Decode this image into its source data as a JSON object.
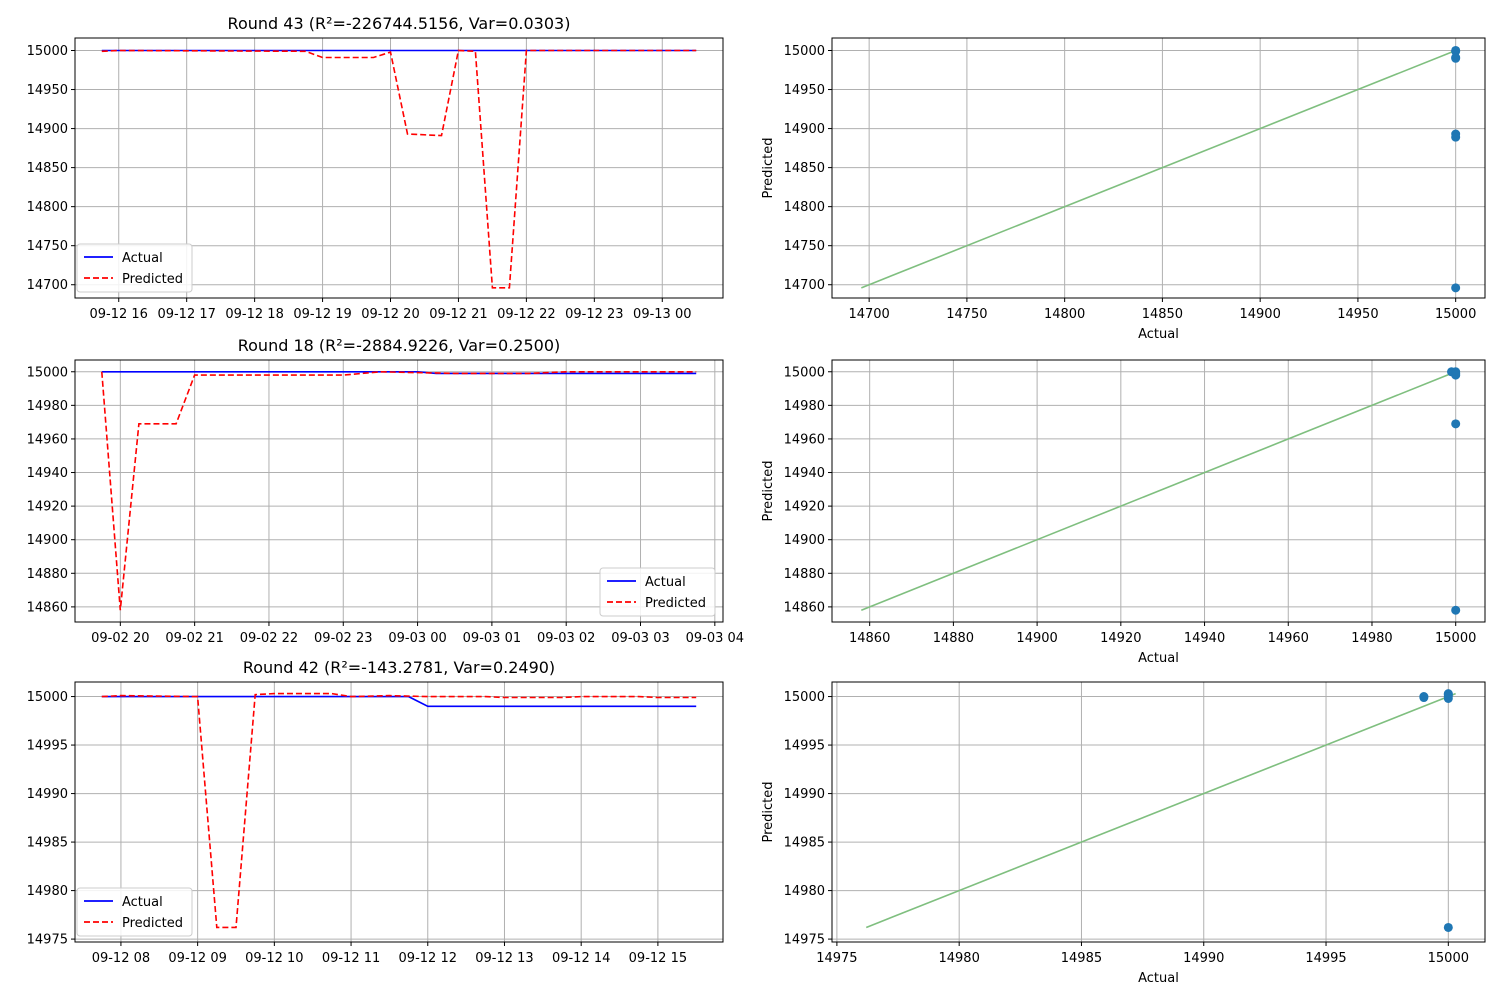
{
  "chart_data": [
    {
      "type": "line",
      "title": "Round 43 (R²=-226744.5156, Var=0.0303)",
      "xlabel": "",
      "ylabel": "",
      "x_ticks": [
        "09-12 16",
        "09-12 17",
        "09-12 18",
        "09-12 19",
        "09-12 20",
        "09-12 21",
        "09-12 22",
        "09-12 23",
        "09-13 00"
      ],
      "y_ticks": [
        "15000",
        "14950",
        "14900",
        "14850",
        "14800",
        "14750",
        "14700"
      ],
      "ylim": [
        14683,
        15016
      ],
      "x_time_range": [
        "09-12 15:45",
        "09-13 00:30"
      ],
      "grid": true,
      "legend": {
        "placement": "lower-left",
        "entries": [
          "Actual",
          "Predicted"
        ]
      },
      "series": [
        {
          "name": "Actual",
          "color": "#0000ff",
          "dash": "solid",
          "points": [
            [
              "09-12 15:45",
              15000
            ],
            [
              "09-13 00:30",
              15000
            ]
          ]
        },
        {
          "name": "Predicted",
          "color": "#ff0000",
          "dash": "dashed",
          "points": [
            [
              "09-12 15:45",
              14999
            ],
            [
              "09-12 16:00",
              15000
            ],
            [
              "09-12 18:45",
              14999
            ],
            [
              "09-12 19:00",
              14991
            ],
            [
              "09-12 19:45",
              14991
            ],
            [
              "09-12 20:00",
              14998
            ],
            [
              "09-12 20:15",
              14893
            ],
            [
              "09-12 20:45",
              14891
            ],
            [
              "09-12 21:00",
              15000
            ],
            [
              "09-12 21:15",
              14999
            ],
            [
              "09-12 21:30",
              14696
            ],
            [
              "09-12 21:45",
              14696
            ],
            [
              "09-12 22:00",
              15000
            ],
            [
              "09-13 00:30",
              15000
            ]
          ]
        }
      ]
    },
    {
      "type": "scatter",
      "title": "",
      "xlabel": "Actual",
      "ylabel": "Predicted",
      "x_ticks": [
        "14700",
        "14750",
        "14800",
        "14850",
        "14900",
        "14950",
        "15000"
      ],
      "y_ticks": [
        "15000",
        "14950",
        "14900",
        "14850",
        "14800",
        "14750",
        "14700"
      ],
      "xlim": [
        14681,
        15015
      ],
      "ylim": [
        14683,
        15016
      ],
      "grid": true,
      "points": [
        [
          15000,
          15000
        ],
        [
          15000,
          14999
        ],
        [
          15000,
          14991
        ],
        [
          15000,
          14990
        ],
        [
          15000,
          14893
        ],
        [
          15000,
          14889
        ],
        [
          15000,
          14696
        ]
      ],
      "point_color": "#1f77b4",
      "reference_line": {
        "from": [
          14696,
          14696
        ],
        "to": [
          15000,
          15000
        ],
        "color": "#7fbf7f"
      }
    },
    {
      "type": "line",
      "title": "Round 18 (R²=-2884.9226, Var=0.2500)",
      "xlabel": "",
      "ylabel": "",
      "x_ticks": [
        "09-02 20",
        "09-02 21",
        "09-02 22",
        "09-02 23",
        "09-03 00",
        "09-03 01",
        "09-03 02",
        "09-03 03",
        "09-03 04"
      ],
      "y_ticks": [
        "15000",
        "14980",
        "14960",
        "14940",
        "14920",
        "14900",
        "14880",
        "14860"
      ],
      "ylim": [
        14851,
        15007
      ],
      "x_time_range": [
        "09-02 19:45",
        "09-03 03:45"
      ],
      "grid": true,
      "legend": {
        "placement": "lower-right",
        "entries": [
          "Actual",
          "Predicted"
        ]
      },
      "series": [
        {
          "name": "Actual",
          "color": "#0000ff",
          "dash": "solid",
          "points": [
            [
              "09-02 19:45",
              15000
            ],
            [
              "09-03 00:00",
              15000
            ],
            [
              "09-03 00:15",
              14999
            ],
            [
              "09-03 03:45",
              14999
            ]
          ]
        },
        {
          "name": "Predicted",
          "color": "#ff0000",
          "dash": "dashed",
          "points": [
            [
              "09-02 19:45",
              15000
            ],
            [
              "09-02 20:00",
              14858
            ],
            [
              "09-02 20:15",
              14969
            ],
            [
              "09-02 20:45",
              14969
            ],
            [
              "09-02 21:00",
              14998
            ],
            [
              "09-02 23:00",
              14998
            ],
            [
              "09-02 23:30",
              15000
            ],
            [
              "09-03 00:30",
              14999
            ],
            [
              "09-03 01:30",
              14999
            ],
            [
              "09-03 02:00",
              15000
            ],
            [
              "09-03 03:45",
              15000
            ]
          ]
        }
      ]
    },
    {
      "type": "scatter",
      "title": "",
      "xlabel": "Actual",
      "ylabel": "Predicted",
      "x_ticks": [
        "14860",
        "14880",
        "14900",
        "14920",
        "14940",
        "14960",
        "14980",
        "15000"
      ],
      "y_ticks": [
        "15000",
        "14980",
        "14960",
        "14940",
        "14920",
        "14900",
        "14880",
        "14860"
      ],
      "xlim": [
        14851,
        15007
      ],
      "ylim": [
        14851,
        15007
      ],
      "grid": true,
      "points": [
        [
          14999,
          15000
        ],
        [
          15000,
          15000
        ],
        [
          15000,
          14999
        ],
        [
          15000,
          14998
        ],
        [
          15000,
          14969
        ],
        [
          15000,
          14858
        ]
      ],
      "point_color": "#1f77b4",
      "reference_line": {
        "from": [
          14858,
          14858
        ],
        "to": [
          15000,
          15000
        ],
        "color": "#7fbf7f"
      }
    },
    {
      "type": "line",
      "title": "Round 42 (R²=-143.2781, Var=0.2490)",
      "xlabel": "",
      "ylabel": "",
      "x_ticks": [
        "09-12 08",
        "09-12 09",
        "09-12 10",
        "09-12 11",
        "09-12 12",
        "09-12 13",
        "09-12 14",
        "09-12 15"
      ],
      "y_ticks": [
        "15000",
        "14995",
        "14990",
        "14985",
        "14980",
        "14975"
      ],
      "ylim": [
        14974.7,
        15001.5
      ],
      "x_time_range": [
        "09-12 07:45",
        "09-12 15:30"
      ],
      "grid": true,
      "legend": {
        "placement": "lower-left",
        "entries": [
          "Actual",
          "Predicted"
        ]
      },
      "series": [
        {
          "name": "Actual",
          "color": "#0000ff",
          "dash": "solid",
          "points": [
            [
              "09-12 07:45",
              15000
            ],
            [
              "09-12 11:45",
              15000
            ],
            [
              "09-12 12:00",
              14999
            ],
            [
              "09-12 15:30",
              14999
            ]
          ]
        },
        {
          "name": "Predicted",
          "color": "#ff0000",
          "dash": "dashed",
          "points": [
            [
              "09-12 07:45",
              15000
            ],
            [
              "09-12 08:00",
              15000.1
            ],
            [
              "09-12 09:00",
              15000
            ],
            [
              "09-12 09:15",
              14976.2
            ],
            [
              "09-12 09:30",
              14976.2
            ],
            [
              "09-12 09:45",
              15000.2
            ],
            [
              "09-12 10:00",
              15000.3
            ],
            [
              "09-12 10:45",
              15000.3
            ],
            [
              "09-12 11:00",
              15000
            ],
            [
              "09-12 11:30",
              15000.1
            ],
            [
              "09-12 12:00",
              15000
            ],
            [
              "09-12 12:45",
              15000
            ],
            [
              "09-12 13:00",
              14999.9
            ],
            [
              "09-12 13:45",
              14999.9
            ],
            [
              "09-12 14:00",
              15000
            ],
            [
              "09-12 14:45",
              15000
            ],
            [
              "09-12 15:00",
              14999.9
            ],
            [
              "09-12 15:30",
              14999.9
            ]
          ]
        }
      ]
    },
    {
      "type": "scatter",
      "title": "",
      "xlabel": "Actual",
      "ylabel": "Predicted",
      "x_ticks": [
        "14975",
        "14980",
        "14985",
        "14990",
        "14995",
        "15000"
      ],
      "y_ticks": [
        "15000",
        "14995",
        "14990",
        "14985",
        "14980",
        "14975"
      ],
      "xlim": [
        14974.8,
        15001.5
      ],
      "ylim": [
        14974.7,
        15001.5
      ],
      "grid": true,
      "points": [
        [
          14999,
          14999.9
        ],
        [
          14999,
          15000
        ],
        [
          15000,
          15000.3
        ],
        [
          15000,
          15000.2
        ],
        [
          15000,
          15000
        ],
        [
          15000,
          14999.8
        ],
        [
          15000,
          14976.2
        ]
      ],
      "point_color": "#1f77b4",
      "reference_line": {
        "from": [
          14976.2,
          14976.2
        ],
        "to": [
          15000.3,
          15000.3
        ],
        "color": "#7fbf7f"
      }
    }
  ]
}
